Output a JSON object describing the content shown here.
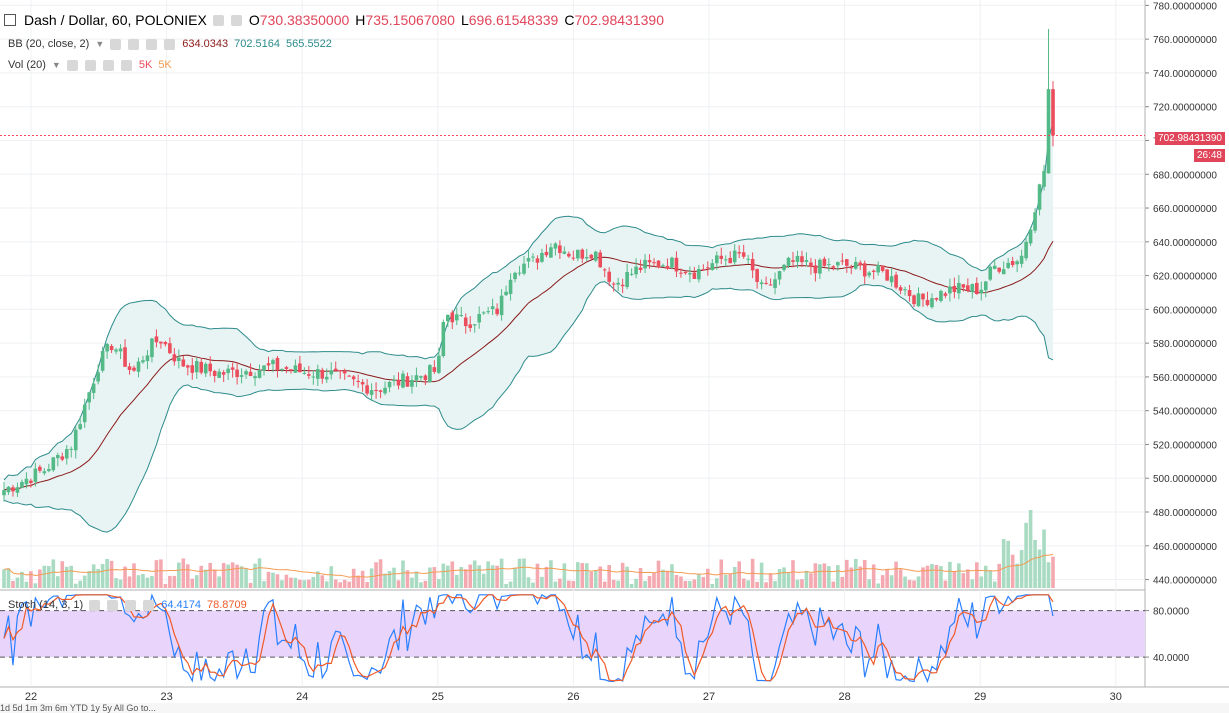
{
  "header": {
    "symbol": "Dash / Dollar, 60, POLONIEX",
    "o_label": "O",
    "o_value": "730.38350000",
    "h_label": "H",
    "h_value": "735.15067080",
    "l_label": "L",
    "l_value": "696.61548339",
    "c_label": "C",
    "c_value": "702.98431390"
  },
  "bb": {
    "label": "BB (20, close, 2)",
    "v1": "634.0343",
    "v2": "702.5164",
    "v3": "565.5522"
  },
  "vol": {
    "label": "Vol (20)",
    "v1": "5K",
    "v2": "5K"
  },
  "stoch": {
    "label": "Stoch (14, 3, 1)",
    "v1": "64.4174",
    "v2": "78.8709"
  },
  "price_tag": "702.98431390",
  "countdown": "26:48",
  "bottombar": {
    "label": "1d  5d  1m  3m  6m  YTD  1y  5y  All   Go to..."
  },
  "colors": {
    "up": "#53b987",
    "down": "#eb4d5c",
    "bb_mid": "#8b1a1a",
    "bb_band": "#2e8b8b",
    "stoch_k": "#2a7fff",
    "stoch_d": "#f05a28",
    "vol_ma": "#f49b50"
  },
  "chart_data": {
    "type": "candlestick",
    "title": "Dash / Dollar, 60, POLONIEX",
    "x_ticks": [
      "22",
      "23",
      "24",
      "25",
      "26",
      "27",
      "28",
      "29",
      "30"
    ],
    "price_ticks": [
      "780.00000000",
      "760.00000000",
      "740.00000000",
      "720.00000000",
      "700.00000000",
      "680.00000000",
      "660.00000000",
      "640.00000000",
      "620.00000000",
      "600.00000000",
      "580.00000000",
      "560.00000000",
      "540.00000000",
      "520.00000000",
      "500.00000000",
      "480.00000000",
      "460.00000000",
      "440.00000000"
    ],
    "ylim": [
      435,
      782
    ],
    "stoch_ticks": [
      "80.0000",
      "40.0000"
    ],
    "stoch_ylim": [
      0,
      100
    ],
    "anchors": [
      {
        "day": 21.8,
        "close": 493
      },
      {
        "day": 22.1,
        "close": 505
      },
      {
        "day": 22.3,
        "close": 520
      },
      {
        "day": 22.5,
        "close": 568
      },
      {
        "day": 22.6,
        "close": 580
      },
      {
        "day": 22.75,
        "close": 562
      },
      {
        "day": 22.85,
        "close": 575
      },
      {
        "day": 22.95,
        "close": 583
      },
      {
        "day": 23.1,
        "close": 568
      },
      {
        "day": 23.4,
        "close": 562
      },
      {
        "day": 23.8,
        "close": 566
      },
      {
        "day": 24.0,
        "close": 563
      },
      {
        "day": 24.2,
        "close": 562
      },
      {
        "day": 24.35,
        "close": 557
      },
      {
        "day": 24.55,
        "close": 553
      },
      {
        "day": 24.75,
        "close": 558
      },
      {
        "day": 25.0,
        "close": 564
      },
      {
        "day": 25.05,
        "close": 598
      },
      {
        "day": 25.2,
        "close": 592
      },
      {
        "day": 25.45,
        "close": 600
      },
      {
        "day": 25.55,
        "close": 625
      },
      {
        "day": 25.7,
        "close": 628
      },
      {
        "day": 25.85,
        "close": 640
      },
      {
        "day": 26.0,
        "close": 632
      },
      {
        "day": 26.15,
        "close": 635
      },
      {
        "day": 26.3,
        "close": 615
      },
      {
        "day": 26.5,
        "close": 625
      },
      {
        "day": 26.7,
        "close": 628
      },
      {
        "day": 26.9,
        "close": 622
      },
      {
        "day": 27.1,
        "close": 630
      },
      {
        "day": 27.25,
        "close": 632
      },
      {
        "day": 27.4,
        "close": 610
      },
      {
        "day": 27.6,
        "close": 628
      },
      {
        "day": 27.8,
        "close": 625
      },
      {
        "day": 28.0,
        "close": 626
      },
      {
        "day": 28.3,
        "close": 621
      },
      {
        "day": 28.55,
        "close": 605
      },
      {
        "day": 28.8,
        "close": 612
      },
      {
        "day": 29.0,
        "close": 612
      },
      {
        "day": 29.1,
        "close": 625
      },
      {
        "day": 29.3,
        "close": 630
      },
      {
        "day": 29.4,
        "close": 660
      },
      {
        "day": 29.47,
        "close": 682
      },
      {
        "day": 29.52,
        "close": 703
      }
    ],
    "last_candle": {
      "open": 730.3835,
      "high": 735.1506708,
      "low": 696.61548339,
      "close": 702.9843139
    }
  }
}
